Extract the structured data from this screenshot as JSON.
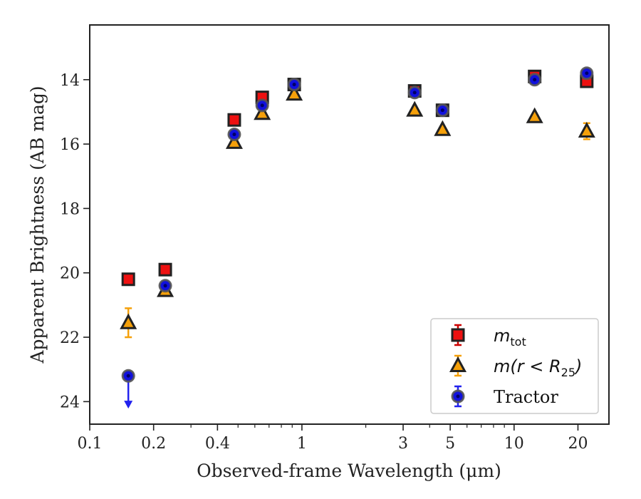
{
  "chart_data": {
    "type": "scatter",
    "xlabel": "Observed-frame Wavelength (μm)",
    "ylabel": "Apparent Brightness (AB mag)",
    "xscale": "log",
    "xlim": [
      0.1,
      28
    ],
    "ylim": [
      24.7,
      12.3
    ],
    "y_inverted": true,
    "x_ticks": [
      0.1,
      0.2,
      0.4,
      1,
      3,
      5,
      10,
      20
    ],
    "x_tick_labels": [
      "0.1",
      "0.2",
      "0.4",
      "1",
      "3",
      "5",
      "10",
      "20"
    ],
    "y_ticks": [
      14,
      16,
      18,
      20,
      22,
      24
    ],
    "y_tick_labels": [
      "14",
      "16",
      "18",
      "20",
      "22",
      "24"
    ],
    "grid": false,
    "legend_position": "lower-right",
    "series": [
      {
        "name": "m_tot",
        "marker": "square",
        "face_color": "#ee1111",
        "edge_color": "#222222",
        "error_color": "#cc0000",
        "points": [
          {
            "x": 0.152,
            "y": 20.2,
            "err": 0.05
          },
          {
            "x": 0.227,
            "y": 19.9,
            "err": 0.05
          },
          {
            "x": 0.48,
            "y": 15.25,
            "err": 0.05
          },
          {
            "x": 0.65,
            "y": 14.55,
            "err": 0.05
          },
          {
            "x": 0.92,
            "y": 14.15,
            "err": 0.05
          },
          {
            "x": 3.4,
            "y": 14.35,
            "err": 0.05
          },
          {
            "x": 4.6,
            "y": 14.95,
            "err": 0.05
          },
          {
            "x": 12.5,
            "y": 13.9,
            "err": 0.05
          },
          {
            "x": 22.0,
            "y": 14.05,
            "err": 0.05
          }
        ]
      },
      {
        "name": "m(r<R25)",
        "marker": "triangle",
        "face_color": "#f5a00a",
        "edge_color": "#222222",
        "error_color": "#f5a00a",
        "points": [
          {
            "x": 0.152,
            "y": 21.55,
            "err": 0.45
          },
          {
            "x": 0.227,
            "y": 20.55,
            "err": 0.08
          },
          {
            "x": 0.48,
            "y": 15.95,
            "err": 0.05
          },
          {
            "x": 0.65,
            "y": 15.05,
            "err": 0.05
          },
          {
            "x": 0.92,
            "y": 14.45,
            "err": 0.05
          },
          {
            "x": 3.4,
            "y": 14.95,
            "err": 0.05
          },
          {
            "x": 4.6,
            "y": 15.55,
            "err": 0.05
          },
          {
            "x": 12.5,
            "y": 15.15,
            "err": 0.05
          },
          {
            "x": 22.0,
            "y": 15.6,
            "err": 0.25
          }
        ]
      },
      {
        "name": "Tractor",
        "marker": "circle",
        "face_color": "#1111dd",
        "edge_color": "#555555",
        "error_color": "#2222ee",
        "points": [
          {
            "x": 0.152,
            "y": 23.2,
            "upper_limit": true
          },
          {
            "x": 0.227,
            "y": 20.4,
            "err": 0.05
          },
          {
            "x": 0.48,
            "y": 15.7,
            "err": 0.05
          },
          {
            "x": 0.65,
            "y": 14.8,
            "err": 0.05
          },
          {
            "x": 0.92,
            "y": 14.15,
            "err": 0.05
          },
          {
            "x": 3.4,
            "y": 14.4,
            "err": 0.05
          },
          {
            "x": 4.6,
            "y": 14.95,
            "err": 0.05
          },
          {
            "x": 12.5,
            "y": 14.0,
            "err": 0.05
          },
          {
            "x": 22.0,
            "y": 13.8,
            "err": 0.05
          }
        ]
      }
    ],
    "legend": {
      "entries": [
        {
          "series": "m_tot",
          "base": "m",
          "sub": "tot"
        },
        {
          "series": "m(r<R25)",
          "base": "m(r < R",
          "sub": "25",
          "tail": ")"
        },
        {
          "series": "Tractor",
          "base": "Tractor"
        }
      ]
    }
  }
}
